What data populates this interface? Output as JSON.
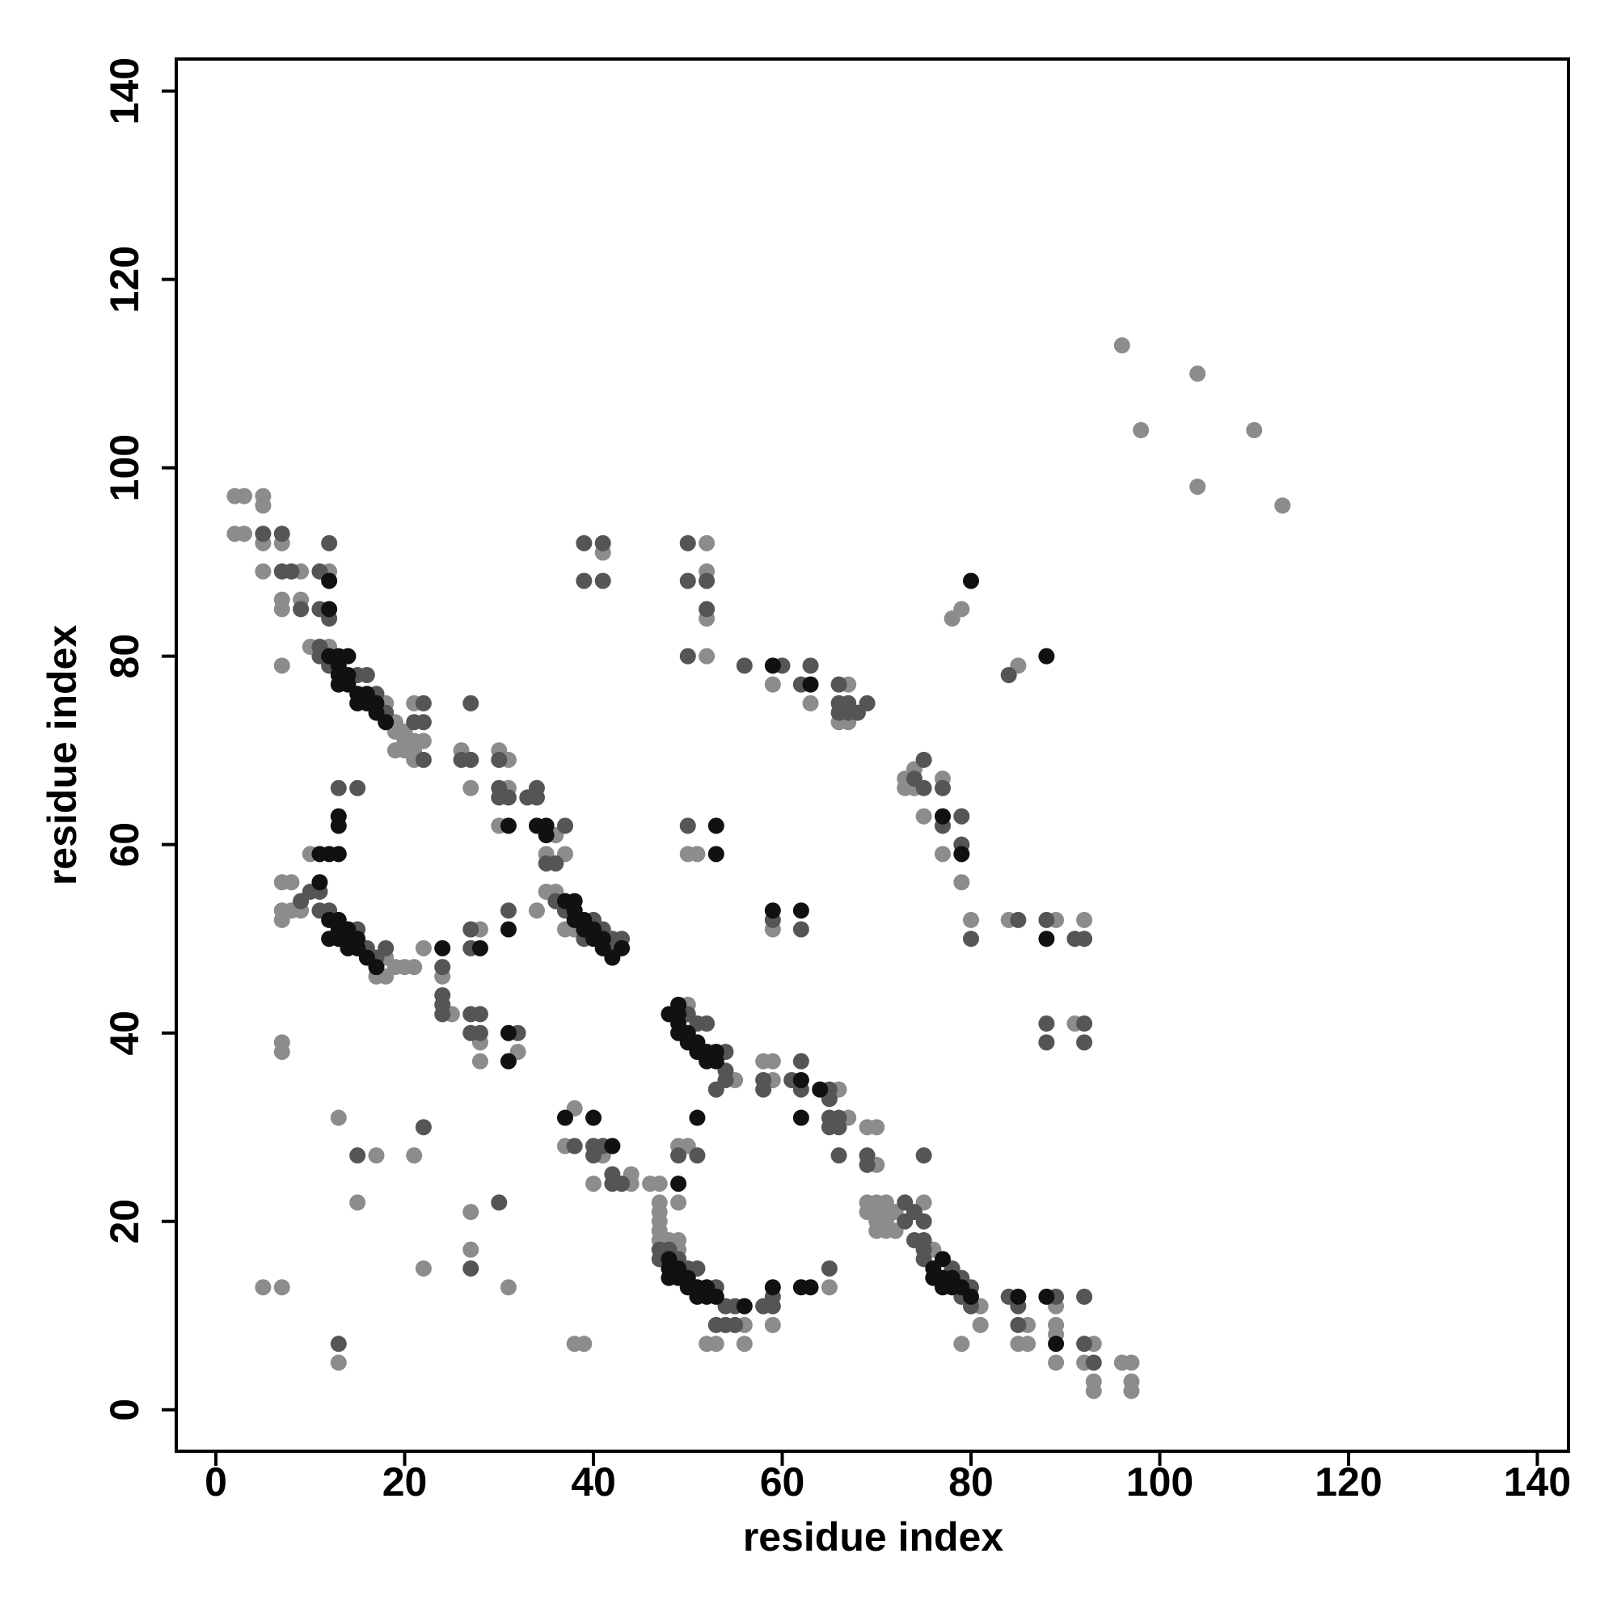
{
  "chart_data": {
    "type": "scatter",
    "x_label": "residue index",
    "y_label": "residue index",
    "xlim": [
      -4.2,
      143.3
    ],
    "ylim": [
      -4.4,
      143.4
    ],
    "xticks": [
      0,
      20,
      40,
      60,
      80,
      100,
      120,
      140
    ],
    "yticks": [
      0,
      20,
      40,
      60,
      80,
      100,
      120,
      140
    ],
    "series": [
      {
        "color": "#8c8c8c",
        "x": [
          2,
          3,
          5,
          2,
          3,
          5,
          5,
          7,
          5,
          9,
          7,
          7,
          9,
          12,
          7,
          10,
          12,
          19,
          19,
          20,
          20,
          19,
          20,
          21,
          21,
          21,
          21,
          22,
          18,
          26,
          27,
          30,
          31,
          31,
          30,
          35,
          36,
          37,
          34,
          35,
          36,
          7,
          8,
          7,
          8,
          9,
          10,
          7,
          17,
          18,
          18,
          19,
          20,
          21,
          22,
          24,
          25,
          28,
          28,
          28,
          32,
          7,
          7,
          37,
          38,
          50,
          55,
          59,
          58,
          59,
          66,
          67,
          69,
          70,
          70,
          38,
          37,
          41,
          40,
          44,
          44,
          46,
          47,
          47,
          47,
          47,
          47,
          47,
          48,
          49,
          49,
          49,
          50,
          49,
          52,
          53,
          56,
          56,
          59,
          65,
          69,
          70,
          71,
          69,
          70,
          71,
          72,
          70,
          71,
          70,
          71,
          72,
          75,
          76,
          79,
          81,
          81,
          85,
          86,
          86,
          89,
          89,
          89,
          89,
          93,
          92,
          93,
          93,
          96,
          97,
          97,
          97,
          13,
          17,
          15,
          21,
          27,
          27,
          22,
          31,
          5,
          7,
          13,
          38,
          39,
          41,
          52,
          52,
          52,
          52,
          59,
          63,
          67,
          66,
          67,
          51,
          50,
          59,
          73,
          74,
          73,
          74,
          77,
          75,
          77,
          79,
          80,
          84,
          89,
          92,
          91,
          78,
          79,
          85,
          96,
          104,
          98,
          110,
          104,
          113
        ],
        "y": [
          97,
          97,
          97,
          93,
          93,
          96,
          92,
          92,
          89,
          89,
          86,
          85,
          86,
          89,
          79,
          81,
          81,
          73,
          72,
          72,
          71,
          70,
          70,
          75,
          71,
          70,
          69,
          71,
          75,
          70,
          66,
          70,
          69,
          66,
          62,
          59,
          61,
          59,
          53,
          55,
          55,
          56,
          56,
          53,
          53,
          53,
          59,
          52,
          46,
          46,
          48,
          47,
          47,
          47,
          49,
          46,
          42,
          39,
          37,
          51,
          38,
          39,
          38,
          51,
          51,
          43,
          35,
          37,
          37,
          35,
          34,
          31,
          30,
          30,
          26,
          32,
          28,
          27,
          24,
          25,
          24,
          24,
          24,
          22,
          21,
          20,
          19,
          18,
          18,
          18,
          17,
          22,
          28,
          28,
          7,
          7,
          7,
          9,
          9,
          13,
          22,
          22,
          22,
          21,
          21,
          21,
          21,
          20,
          20,
          19,
          19,
          19,
          22,
          17,
          7,
          11,
          9,
          7,
          7,
          9,
          11,
          9,
          8,
          5,
          7,
          5,
          3,
          2,
          5,
          5,
          3,
          2,
          31,
          27,
          22,
          27,
          21,
          17,
          15,
          13,
          13,
          13,
          5,
          7,
          7,
          91,
          92,
          89,
          84,
          80,
          77,
          75,
          77,
          73,
          73,
          59,
          59,
          51,
          67,
          68,
          66,
          66,
          67,
          63,
          59,
          56,
          52,
          52,
          52,
          52,
          41,
          84,
          85,
          79,
          113,
          110,
          104,
          104,
          98,
          96
        ]
      },
      {
        "color": "#555555",
        "x": [
          5,
          7,
          7,
          8,
          9,
          11,
          12,
          11,
          12,
          11,
          12,
          11,
          16,
          15,
          17,
          18,
          22,
          22,
          21,
          22,
          26,
          27,
          27,
          30,
          30,
          31,
          30,
          33,
          34,
          34,
          36,
          37,
          35,
          10,
          9,
          11,
          11,
          12,
          15,
          16,
          17,
          18,
          13,
          15,
          24,
          24,
          24,
          24,
          27,
          28,
          27,
          28,
          32,
          27,
          27,
          31,
          36,
          37,
          39,
          40,
          41,
          42,
          42,
          43,
          50,
          51,
          52,
          54,
          54,
          53,
          54,
          58,
          58,
          61,
          62,
          62,
          65,
          65,
          65,
          66,
          66,
          65,
          69,
          69,
          66,
          38,
          40,
          41,
          40,
          42,
          43,
          42,
          49,
          51,
          47,
          48,
          49,
          47,
          50,
          51,
          53,
          54,
          55,
          53,
          54,
          55,
          59,
          59,
          58,
          73,
          73,
          74,
          74,
          75,
          75,
          75,
          75,
          78,
          79,
          79,
          80,
          80,
          84,
          85,
          85,
          89,
          92,
          92,
          93,
          65,
          75,
          13,
          27,
          30,
          22,
          15,
          39,
          41,
          39,
          41,
          50,
          50,
          52,
          52,
          50,
          56,
          60,
          62,
          63,
          66,
          66,
          67,
          66,
          67,
          68,
          69,
          50,
          62,
          75,
          74,
          75,
          77,
          79,
          79,
          77,
          80,
          85,
          88,
          92,
          91,
          88,
          88,
          92,
          92,
          84,
          59
        ],
        "y": [
          93,
          93,
          89,
          89,
          85,
          89,
          92,
          85,
          84,
          80,
          79,
          81,
          78,
          78,
          76,
          74,
          75,
          73,
          73,
          69,
          69,
          69,
          75,
          69,
          66,
          65,
          65,
          65,
          65,
          66,
          58,
          62,
          58,
          55,
          54,
          55,
          53,
          53,
          51,
          49,
          48,
          49,
          66,
          66,
          47,
          44,
          43,
          42,
          42,
          42,
          40,
          40,
          40,
          51,
          49,
          53,
          54,
          53,
          50,
          52,
          51,
          50,
          49,
          50,
          42,
          41,
          41,
          38,
          36,
          34,
          35,
          35,
          34,
          35,
          34,
          37,
          34,
          33,
          31,
          31,
          30,
          30,
          26,
          27,
          27,
          28,
          28,
          28,
          27,
          25,
          24,
          24,
          27,
          27,
          17,
          17,
          16,
          16,
          15,
          15,
          13,
          11,
          11,
          9,
          9,
          9,
          12,
          11,
          11,
          22,
          20,
          21,
          18,
          20,
          18,
          17,
          16,
          15,
          14,
          12,
          13,
          11,
          12,
          11,
          9,
          12,
          12,
          7,
          5,
          15,
          27,
          7,
          15,
          22,
          30,
          27,
          92,
          92,
          88,
          88,
          92,
          88,
          88,
          85,
          80,
          79,
          79,
          77,
          79,
          77,
          75,
          75,
          74,
          74,
          74,
          75,
          62,
          51,
          69,
          67,
          66,
          66,
          63,
          60,
          62,
          50,
          52,
          52,
          50,
          50,
          41,
          39,
          41,
          39,
          78,
          52
        ]
      },
      {
        "color": "#111111",
        "x": [
          12,
          12,
          12,
          13,
          13,
          14,
          13,
          14,
          13,
          14,
          15,
          15,
          16,
          16,
          17,
          17,
          18,
          13,
          13,
          12,
          13,
          11,
          11,
          12,
          13,
          13,
          12,
          13,
          14,
          14,
          15,
          15,
          14,
          16,
          17,
          24,
          28,
          31,
          31,
          31,
          31,
          34,
          35,
          35,
          37,
          38,
          38,
          38,
          39,
          39,
          40,
          40,
          41,
          41,
          42,
          43,
          48,
          49,
          49,
          49,
          49,
          50,
          50,
          51,
          51,
          52,
          52,
          53,
          53,
          62,
          64,
          62,
          37,
          40,
          42,
          49,
          51,
          48,
          48,
          49,
          48,
          49,
          50,
          50,
          51,
          51,
          52,
          52,
          53,
          56,
          59,
          62,
          63,
          53,
          53,
          59,
          62,
          79,
          80,
          88,
          88,
          76,
          76,
          77,
          77,
          77,
          78,
          78,
          79,
          80,
          85,
          88,
          89,
          77,
          63,
          59
        ],
        "y": [
          88,
          85,
          80,
          80,
          79,
          80,
          78,
          78,
          77,
          77,
          76,
          75,
          76,
          75,
          75,
          74,
          73,
          63,
          62,
          59,
          59,
          59,
          56,
          52,
          52,
          51,
          50,
          50,
          51,
          50,
          50,
          49,
          49,
          48,
          47,
          49,
          49,
          51,
          40,
          37,
          62,
          62,
          62,
          61,
          54,
          54,
          53,
          52,
          52,
          51,
          51,
          50,
          50,
          49,
          48,
          49,
          42,
          43,
          42,
          41,
          40,
          40,
          39,
          39,
          38,
          38,
          37,
          38,
          37,
          35,
          34,
          31,
          31,
          31,
          28,
          24,
          31,
          16,
          15,
          15,
          14,
          14,
          14,
          13,
          13,
          12,
          13,
          12,
          12,
          11,
          13,
          13,
          13,
          62,
          59,
          53,
          53,
          59,
          88,
          80,
          50,
          15,
          14,
          16,
          14,
          13,
          14,
          13,
          13,
          12,
          12,
          12,
          7,
          63,
          77,
          79
        ]
      }
    ]
  }
}
